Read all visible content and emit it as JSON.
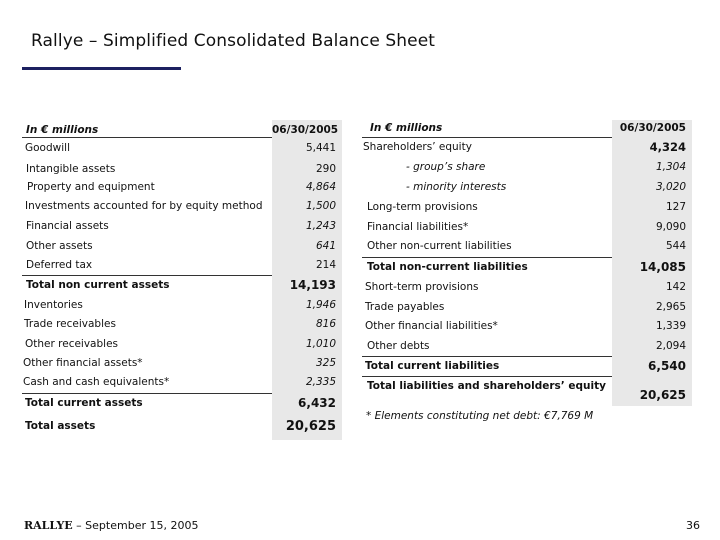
{
  "title": "Rallye – Simplified Consolidated Balance Sheet",
  "left_table": {
    "header_label": "In € millions",
    "header_date": "06/30/2005",
    "rows": [
      {
        "label": "Goodwill",
        "value": "5,441"
      },
      {
        "label": "Intangible assets",
        "value": "290"
      },
      {
        "label": "Property and equipment",
        "value": "4,864"
      },
      {
        "label": "Investments accounted for by equity method",
        "value": "1,500"
      },
      {
        "label": "Financial assets",
        "value": "1,243"
      },
      {
        "label": "Other assets",
        "value": "641"
      },
      {
        "label": "Deferred tax",
        "value": "214"
      },
      {
        "label": "Total non current assets",
        "value": "14,193"
      },
      {
        "label": "Inventories",
        "value": "1,946"
      },
      {
        "label": "Trade receivables",
        "value": "816"
      },
      {
        "label": "Other receivables",
        "value": "1,010"
      },
      {
        "label": "Other financial assets*",
        "value": "325"
      },
      {
        "label": "Cash and cash equivalents*",
        "value": "2,335"
      },
      {
        "label": "Total current assets",
        "value": "6,432"
      },
      {
        "label": "Total assets",
        "value": "20,625"
      }
    ]
  },
  "right_table": {
    "header_label": "In € millions",
    "header_date": "06/30/2005",
    "rows": [
      {
        "label": "Shareholders’ equity",
        "value": "4,324"
      },
      {
        "label": "- group’s share",
        "value": "1,304"
      },
      {
        "label": "- minority interests",
        "value": "3,020"
      },
      {
        "label": "Long-term provisions",
        "value": "127"
      },
      {
        "label": "Financial liabilities*",
        "value": "9,090"
      },
      {
        "label": "Other non-current liabilities",
        "value": "544"
      },
      {
        "label": "Total non-current liabilities",
        "value": "14,085"
      },
      {
        "label": "Short-term provisions",
        "value": "142"
      },
      {
        "label": "Trade payables",
        "value": "2,965"
      },
      {
        "label": "Other financial liabilities*",
        "value": "1,339"
      },
      {
        "label": "Other debts",
        "value": "2,094"
      },
      {
        "label": "Total current liabilities",
        "value": "6,540"
      },
      {
        "label": "Total liabilities and shareholders’ equity",
        "value": "20,625"
      }
    ]
  },
  "note": "* Elements constituting net debt: €7,769 M",
  "footer": {
    "brand": "RALLYE",
    "text": " – September 15, 2005",
    "page": "36"
  },
  "colors": {
    "accent": "#1c2060",
    "shade": "#e8e8e8"
  }
}
